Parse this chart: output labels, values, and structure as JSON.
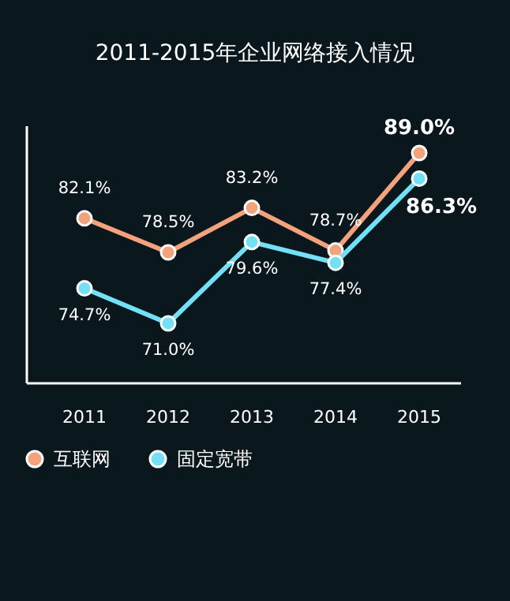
{
  "chart_data": {
    "type": "line",
    "title": "2011-2015年企业网络接入情况",
    "categories": [
      "2011",
      "2012",
      "2013",
      "2014",
      "2015"
    ],
    "series": [
      {
        "name": "互联网",
        "color": "#f3a27c",
        "values": [
          82.1,
          78.5,
          83.2,
          78.7,
          89.0
        ],
        "value_labels": [
          "82.1%",
          "78.5%",
          "83.2%",
          "78.7%",
          "89.0%"
        ]
      },
      {
        "name": "固定宽带",
        "color": "#72e1f6",
        "values": [
          74.7,
          71.0,
          79.6,
          77.4,
          86.3
        ],
        "value_labels": [
          "74.7%",
          "71.0%",
          "79.6%",
          "77.4%",
          "86.3%"
        ]
      }
    ],
    "legend": "bottom left",
    "marker": "circle",
    "line_style": "solid"
  }
}
